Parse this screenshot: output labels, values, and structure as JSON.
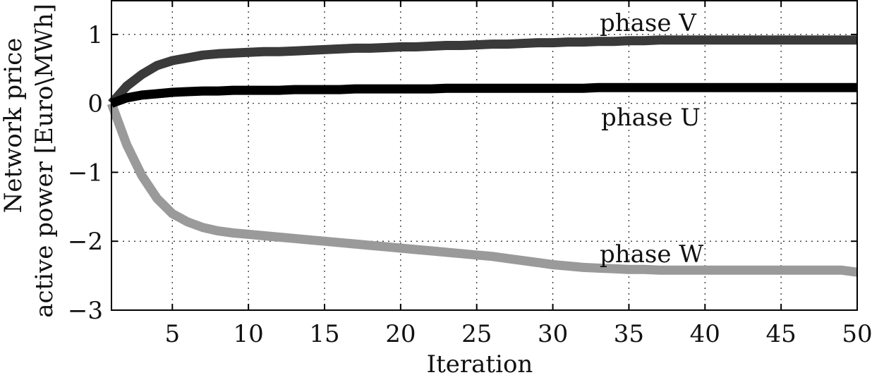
{
  "chart_data": {
    "type": "line",
    "title": "",
    "xlabel": "Iteration",
    "ylabel_lines": [
      "Network price",
      "active power [Euro\\MWh]"
    ],
    "xlim": [
      1,
      50
    ],
    "ylim": [
      -3,
      1.5
    ],
    "xticks": [
      5,
      10,
      15,
      20,
      25,
      30,
      35,
      40,
      45,
      50
    ],
    "yticks": [
      1,
      0,
      -1,
      -2,
      -3
    ],
    "ytick_labels": [
      "1",
      "0",
      "−1",
      "−2",
      "−3"
    ],
    "grid": true,
    "legend": "none",
    "x": [
      1,
      2,
      3,
      4,
      5,
      6,
      7,
      8,
      9,
      10,
      11,
      12,
      13,
      14,
      15,
      16,
      17,
      18,
      19,
      20,
      21,
      22,
      23,
      24,
      25,
      26,
      27,
      28,
      29,
      30,
      31,
      32,
      33,
      34,
      35,
      36,
      37,
      38,
      39,
      40,
      41,
      42,
      43,
      44,
      45,
      46,
      47,
      48,
      49,
      50
    ],
    "series": [
      {
        "name": "phase V",
        "color": "#3a3a3a",
        "values": [
          0.0,
          0.25,
          0.42,
          0.55,
          0.62,
          0.66,
          0.7,
          0.72,
          0.73,
          0.74,
          0.75,
          0.75,
          0.76,
          0.77,
          0.78,
          0.79,
          0.8,
          0.8,
          0.81,
          0.82,
          0.82,
          0.83,
          0.84,
          0.84,
          0.85,
          0.86,
          0.86,
          0.87,
          0.88,
          0.88,
          0.89,
          0.89,
          0.9,
          0.9,
          0.91,
          0.91,
          0.92,
          0.92,
          0.92,
          0.92,
          0.92,
          0.92,
          0.92,
          0.92,
          0.92,
          0.92,
          0.92,
          0.92,
          0.92,
          0.92
        ]
      },
      {
        "name": "phase U",
        "color": "#000000",
        "values": [
          0.0,
          0.08,
          0.12,
          0.14,
          0.16,
          0.17,
          0.18,
          0.18,
          0.19,
          0.19,
          0.19,
          0.19,
          0.2,
          0.2,
          0.2,
          0.2,
          0.21,
          0.21,
          0.21,
          0.21,
          0.21,
          0.21,
          0.22,
          0.22,
          0.22,
          0.22,
          0.22,
          0.22,
          0.22,
          0.22,
          0.22,
          0.22,
          0.23,
          0.23,
          0.23,
          0.23,
          0.23,
          0.23,
          0.23,
          0.23,
          0.23,
          0.23,
          0.23,
          0.23,
          0.23,
          0.23,
          0.23,
          0.23,
          0.23,
          0.23
        ]
      },
      {
        "name": "phase W",
        "color": "#9a9a9a",
        "values": [
          0.0,
          -0.6,
          -1.05,
          -1.38,
          -1.6,
          -1.72,
          -1.8,
          -1.85,
          -1.88,
          -1.9,
          -1.92,
          -1.94,
          -1.96,
          -1.98,
          -2.0,
          -2.02,
          -2.04,
          -2.06,
          -2.08,
          -2.1,
          -2.12,
          -2.14,
          -2.16,
          -2.18,
          -2.2,
          -2.22,
          -2.25,
          -2.28,
          -2.31,
          -2.34,
          -2.36,
          -2.38,
          -2.39,
          -2.4,
          -2.41,
          -2.41,
          -2.42,
          -2.42,
          -2.42,
          -2.42,
          -2.42,
          -2.42,
          -2.42,
          -2.42,
          -2.42,
          -2.42,
          -2.42,
          -2.42,
          -2.42,
          -2.45
        ]
      }
    ]
  }
}
